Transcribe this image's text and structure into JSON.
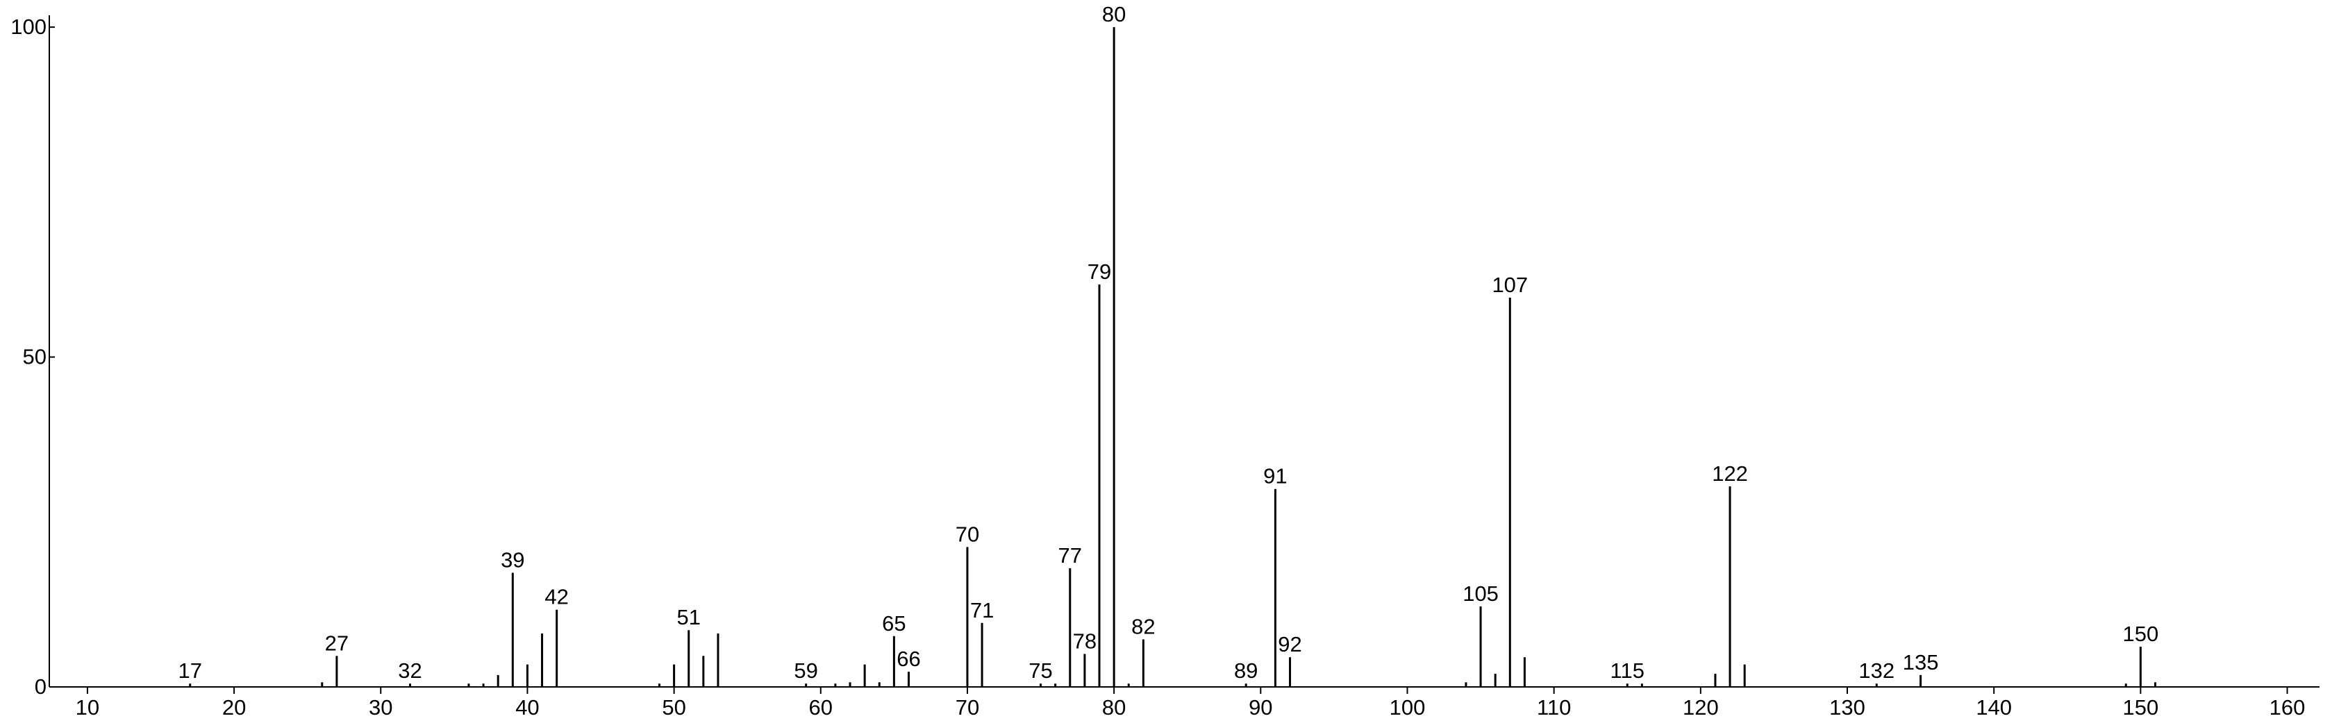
{
  "chart_data": {
    "type": "stem",
    "x": [
      17,
      26,
      27,
      32,
      36,
      37,
      38,
      39,
      40,
      41,
      42,
      49,
      50,
      51,
      52,
      53,
      59,
      61,
      62,
      63,
      64,
      65,
      66,
      70,
      71,
      75,
      76,
      77,
      78,
      79,
      80,
      81,
      82,
      89,
      91,
      92,
      104,
      105,
      106,
      107,
      108,
      115,
      116,
      121,
      122,
      123,
      132,
      135,
      149,
      150,
      151
    ],
    "values": [
      0.5,
      0.7,
      4.7,
      0.5,
      0.5,
      0.5,
      1.8,
      17.3,
      3.4,
      8.1,
      11.7,
      0.5,
      3.4,
      8.6,
      4.7,
      8.1,
      0.5,
      0.5,
      0.7,
      3.4,
      0.7,
      7.7,
      2.3,
      21.2,
      9.7,
      0.5,
      0.5,
      18,
      5,
      61,
      100,
      0.5,
      7.2,
      0.5,
      30,
      4.5,
      0.7,
      12.2,
      2,
      59,
      4.5,
      0.5,
      0.5,
      2,
      30.4,
      3.4,
      0.5,
      1.8,
      0.5,
      6.1,
      0.7
    ],
    "annotations": [
      17,
      27,
      32,
      39,
      42,
      51,
      59,
      65,
      66,
      70,
      71,
      75,
      77,
      78,
      79,
      80,
      82,
      89,
      91,
      92,
      105,
      107,
      115,
      122,
      132,
      135,
      150
    ],
    "color": "#000000",
    "xlim": [
      7.4,
      162.2
    ],
    "ylim": [
      0,
      101.8
    ],
    "xticks": [
      10,
      20,
      30,
      40,
      50,
      60,
      70,
      80,
      90,
      100,
      110,
      120,
      130,
      140,
      150,
      160
    ],
    "yticks": [
      0,
      50,
      100
    ]
  }
}
